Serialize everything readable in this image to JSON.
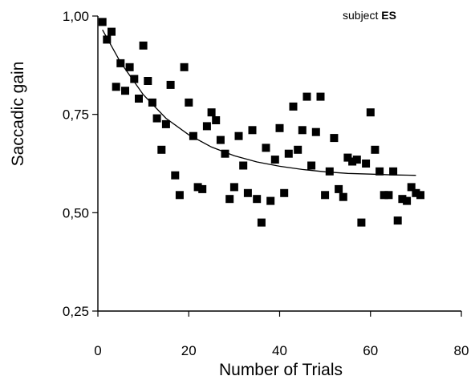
{
  "chart_data": {
    "type": "scatter",
    "xlabel": "Number of Trials",
    "ylabel": "Saccadic gain",
    "xlim": [
      0,
      80
    ],
    "ylim": [
      0.25,
      1.0
    ],
    "x_ticks": [
      0,
      20,
      40,
      60,
      80
    ],
    "x_tick_labels": [
      "0",
      "20",
      "40",
      "60",
      "80"
    ],
    "y_ticks": [
      0.25,
      0.5,
      0.75,
      1.0
    ],
    "y_tick_labels": [
      "0,25",
      "0,50",
      "0,75",
      "1,00"
    ],
    "grid": false,
    "annotation": {
      "prefix": "subject",
      "bold": "ES"
    },
    "marker_color": "#000000",
    "series": [
      {
        "x": [
          1,
          2,
          3,
          4,
          5,
          6,
          7,
          8,
          9,
          10,
          11,
          12,
          13,
          14,
          15,
          16,
          17,
          18,
          19,
          20,
          21,
          22,
          23,
          24,
          25,
          26,
          27,
          28,
          29,
          30,
          31,
          32,
          33,
          34,
          35,
          36,
          37,
          38,
          39,
          40,
          41,
          42,
          43,
          44,
          45,
          46,
          47,
          48,
          49,
          50,
          51,
          52,
          53,
          54,
          55,
          56,
          57,
          58,
          59,
          60,
          61,
          62,
          63,
          64,
          65,
          66,
          67,
          68,
          69,
          70,
          71
        ],
        "y": [
          0.985,
          0.94,
          0.96,
          0.82,
          0.88,
          0.81,
          0.87,
          0.84,
          0.79,
          0.925,
          0.835,
          0.78,
          0.74,
          0.66,
          0.725,
          0.825,
          0.595,
          0.545,
          0.87,
          0.78,
          0.695,
          0.565,
          0.56,
          0.72,
          0.755,
          0.735,
          0.685,
          0.65,
          0.535,
          0.565,
          0.695,
          0.62,
          0.55,
          0.71,
          0.535,
          0.475,
          0.665,
          0.53,
          0.635,
          0.715,
          0.55,
          0.65,
          0.77,
          0.66,
          0.71,
          0.795,
          0.62,
          0.705,
          0.795,
          0.545,
          0.605,
          0.69,
          0.56,
          0.54,
          0.64,
          0.63,
          0.635,
          0.475,
          0.625,
          0.755,
          0.66,
          0.605,
          0.545,
          0.545,
          0.605,
          0.48,
          0.535,
          0.53,
          0.565,
          0.55,
          0.545
        ]
      }
    ],
    "fit_curve": {
      "type": "exponential",
      "x": [
        1,
        5,
        10,
        15,
        20,
        25,
        30,
        35,
        40,
        45,
        50,
        55,
        60,
        65,
        70
      ],
      "y": [
        0.965,
        0.882,
        0.8,
        0.74,
        0.698,
        0.667,
        0.645,
        0.629,
        0.618,
        0.61,
        0.604,
        0.6,
        0.598,
        0.596,
        0.595
      ]
    }
  }
}
